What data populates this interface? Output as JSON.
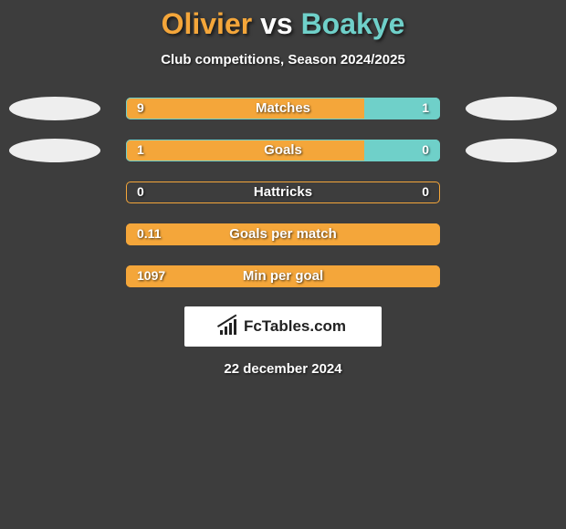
{
  "title": {
    "player1": "Olivier",
    "vs": "vs",
    "player2": "Boakye",
    "color1": "#f4a63a",
    "color2": "#6fd0c9"
  },
  "subtitle": "Club competitions, Season 2024/2025",
  "colors": {
    "background": "#3d3d3d",
    "left_fill": "#f4a63a",
    "right_fill": "#6fd0c9",
    "oval_fill": "#eeeeee",
    "text": "#ffffff"
  },
  "rows": [
    {
      "label": "Matches",
      "left_value": "9",
      "right_value": "1",
      "left_pct": 76,
      "right_pct": 24,
      "show_ovals": true,
      "border_color": "#6fd0c9",
      "show_right_fill": true
    },
    {
      "label": "Goals",
      "left_value": "1",
      "right_value": "0",
      "left_pct": 76,
      "right_pct": 24,
      "show_ovals": true,
      "border_color": "#6fd0c9",
      "show_right_fill": true
    },
    {
      "label": "Hattricks",
      "left_value": "0",
      "right_value": "0",
      "left_pct": 0,
      "right_pct": 0,
      "show_ovals": false,
      "border_color": "#f4a63a",
      "show_right_fill": false
    },
    {
      "label": "Goals per match",
      "left_value": "0.11",
      "right_value": "",
      "left_pct": 100,
      "right_pct": 0,
      "show_ovals": false,
      "border_color": "#f4a63a",
      "show_right_fill": false
    },
    {
      "label": "Min per goal",
      "left_value": "1097",
      "right_value": "",
      "left_pct": 100,
      "right_pct": 0,
      "show_ovals": false,
      "border_color": "#f4a63a",
      "show_right_fill": false
    }
  ],
  "brand": "FcTables.com",
  "date": "22 december 2024"
}
